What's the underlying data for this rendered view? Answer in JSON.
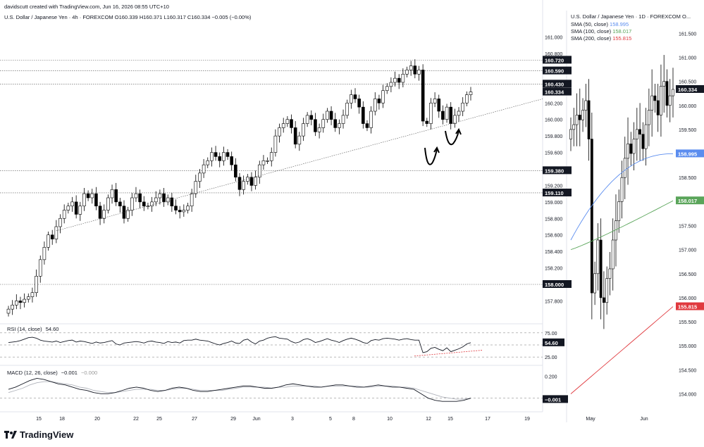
{
  "header": {
    "credit": "davidscutt created with TradingView.com, Jun 16, 2026 08:55 UTC+10"
  },
  "footer": {
    "brand": "TradingView"
  },
  "colors": {
    "up": "#ffffff",
    "down": "#000000",
    "border": "#000000",
    "sma50": "#5b8def",
    "sma100": "#5aa55a",
    "sma200": "#e0393e",
    "rsi_trend": "#e0393e"
  },
  "chart_data": [
    {
      "type": "candlestick",
      "panel": "main-4h",
      "title": "U.S. Dollar / Japanese Yen · 4h · FOREXCOM",
      "ohlc_readout": {
        "O": "160.339",
        "H": "160.371",
        "L": "160.317",
        "C": "160.334",
        "change": "−0.005 (−0.00%)"
      },
      "ylim": [
        157.65,
        161.15
      ],
      "y_ticks": [
        "161.000",
        "160.800",
        "160.600",
        "160.400",
        "160.200",
        "160.000",
        "159.800",
        "159.600",
        "159.400",
        "159.200",
        "159.000",
        "158.800",
        "158.600",
        "158.400",
        "158.200",
        "158.000",
        "157.800"
      ],
      "x_ticks": [
        "15",
        "18",
        "20",
        "22",
        "25",
        "27",
        "29",
        "Jun",
        "3",
        "5",
        "8",
        "10",
        "12",
        "15",
        "17",
        "19"
      ],
      "levels": [
        "160.720",
        "160.590",
        "160.430",
        "159.380",
        "159.110",
        "158.000"
      ],
      "last_price": "160.334",
      "closes": [
        157.7,
        157.75,
        157.8,
        157.78,
        157.82,
        157.85,
        157.9,
        158.1,
        158.3,
        158.45,
        158.6,
        158.55,
        158.7,
        158.8,
        158.9,
        158.95,
        159.0,
        158.85,
        158.95,
        159.1,
        159.05,
        159.1,
        158.95,
        158.8,
        158.9,
        159.05,
        159.15,
        159.0,
        158.95,
        158.8,
        158.9,
        159.05,
        159.1,
        159.0,
        158.95,
        158.95,
        159.0,
        159.05,
        159.1,
        159.0,
        159.05,
        158.95,
        158.9,
        158.88,
        158.9,
        158.95,
        159.1,
        159.25,
        159.35,
        159.45,
        159.5,
        159.6,
        159.55,
        159.5,
        159.6,
        159.55,
        159.45,
        159.3,
        159.15,
        159.25,
        159.3,
        159.2,
        159.3,
        159.45,
        159.5,
        159.5,
        159.6,
        159.8,
        159.9,
        159.95,
        160.0,
        159.9,
        159.7,
        159.8,
        159.95,
        160.05,
        160.0,
        159.85,
        159.9,
        160.0,
        160.1,
        160.0,
        159.9,
        159.95,
        160.05,
        160.2,
        160.3,
        160.25,
        160.15,
        159.95,
        159.9,
        160.1,
        160.25,
        160.2,
        160.35,
        160.4,
        160.45,
        160.5,
        160.45,
        160.55,
        160.6,
        160.65,
        160.55,
        160.6,
        159.98,
        159.95,
        160.2,
        160.25,
        160.1,
        160.0,
        160.15,
        159.95,
        160.05,
        160.1,
        160.2,
        160.3,
        160.334
      ]
    },
    {
      "type": "line",
      "panel": "rsi",
      "title": "RSI (14, close)",
      "value": "54.60",
      "y_ticks": [
        "75.00",
        "25.00"
      ],
      "last": "54.60",
      "ylim": [
        15,
        85
      ],
      "values": [
        55,
        56,
        57,
        59,
        62,
        65,
        66,
        64,
        60,
        58,
        57,
        56,
        58,
        55,
        57,
        59,
        60,
        56,
        58,
        57,
        55,
        53,
        56,
        54,
        55,
        57,
        59,
        52,
        50,
        54,
        55,
        56,
        57,
        56,
        54,
        57,
        58,
        56,
        55,
        53,
        57,
        55,
        56,
        54,
        59,
        60,
        60,
        62,
        60,
        59,
        58,
        55,
        52,
        50,
        53,
        55,
        58,
        54,
        53,
        60,
        62,
        56,
        52,
        58,
        60,
        64,
        66,
        67,
        64,
        63,
        62,
        57,
        54,
        56,
        61,
        63,
        60,
        55,
        57,
        60,
        63,
        60,
        58,
        55,
        59,
        62,
        64,
        62,
        59,
        55,
        53,
        59,
        61,
        60,
        63,
        64,
        63,
        62,
        60,
        62,
        63,
        61,
        60,
        60,
        34,
        36,
        43,
        45,
        41,
        38,
        44,
        36,
        39,
        42,
        46,
        52,
        54.6
      ]
    },
    {
      "type": "line",
      "panel": "macd",
      "title": "MACD (12, 26, close)",
      "macd_value": "−0.001",
      "signal_value": "−0.000",
      "y_ticks": [
        "0.200"
      ],
      "ylim": [
        -0.08,
        0.26
      ],
      "series": [
        {
          "name": "MACD",
          "values": [
            0.08,
            0.1,
            0.13,
            0.16,
            0.18,
            0.17,
            0.15,
            0.13,
            0.12,
            0.1,
            0.08,
            0.07,
            0.05,
            0.04,
            0.04,
            0.05,
            0.07,
            0.09,
            0.1,
            0.09,
            0.07,
            0.06,
            0.07,
            0.09,
            0.1,
            0.09,
            0.07,
            0.06,
            0.06,
            0.07,
            0.08,
            0.09,
            0.1,
            0.11,
            0.11,
            0.1,
            0.09,
            0.09,
            0.1,
            0.12,
            0.13,
            0.12,
            0.11,
            0.1,
            0.1,
            0.11,
            0.12,
            0.12,
            0.11,
            0.1,
            0.1,
            0.11,
            0.12,
            0.11,
            0.1,
            0.1,
            0.09,
            0.08,
            0.04,
            0.0,
            -0.02,
            -0.03,
            -0.03,
            -0.03,
            -0.02,
            -0.001
          ]
        },
        {
          "name": "Signal",
          "values": [
            0.05,
            0.07,
            0.09,
            0.12,
            0.14,
            0.15,
            0.15,
            0.14,
            0.13,
            0.12,
            0.1,
            0.09,
            0.07,
            0.06,
            0.05,
            0.05,
            0.06,
            0.07,
            0.08,
            0.08,
            0.08,
            0.07,
            0.07,
            0.08,
            0.09,
            0.09,
            0.08,
            0.07,
            0.07,
            0.07,
            0.07,
            0.08,
            0.09,
            0.1,
            0.1,
            0.1,
            0.1,
            0.09,
            0.1,
            0.1,
            0.11,
            0.11,
            0.11,
            0.11,
            0.1,
            0.11,
            0.11,
            0.11,
            0.11,
            0.11,
            0.1,
            0.1,
            0.11,
            0.11,
            0.11,
            0.1,
            0.1,
            0.09,
            0.07,
            0.05,
            0.03,
            0.01,
            0.0,
            -0.01,
            -0.01,
            -0.0
          ]
        }
      ]
    },
    {
      "type": "candlestick",
      "panel": "daily",
      "title": "U.S. Dollar / Japanese Yen · 1D · FOREXCOM",
      "title_suffix": "O...",
      "ylim": [
        153.7,
        161.9
      ],
      "y_ticks": [
        "161.500",
        "161.000",
        "160.500",
        "160.000",
        "159.500",
        "159.000",
        "158.500",
        "158.000",
        "157.500",
        "157.000",
        "156.500",
        "156.000",
        "155.500",
        "155.000",
        "154.500",
        "154.000"
      ],
      "x_ticks": [
        "May",
        "Jun"
      ],
      "last_price": "160.334",
      "closes": [
        159.5,
        159.6,
        159.8,
        159.7,
        159.9,
        160.1,
        159.3,
        156.1,
        156.5,
        157.2,
        156.0,
        155.9,
        156.4,
        156.6,
        157.2,
        157.6,
        158.0,
        158.5,
        158.9,
        159.2,
        159.0,
        159.3,
        159.5,
        159.4,
        159.1,
        159.6,
        159.9,
        160.2,
        160.1,
        159.8,
        160.4,
        160.5,
        160.0,
        160.2,
        160.334
      ],
      "series": [
        {
          "name": "SMA (50, close)",
          "value": "158.995",
          "end": 158.995
        },
        {
          "name": "SMA (100, close)",
          "value": "158.017",
          "end": 158.017
        },
        {
          "name": "SMA (200, close)",
          "value": "155.815",
          "end": 155.815
        }
      ]
    }
  ]
}
